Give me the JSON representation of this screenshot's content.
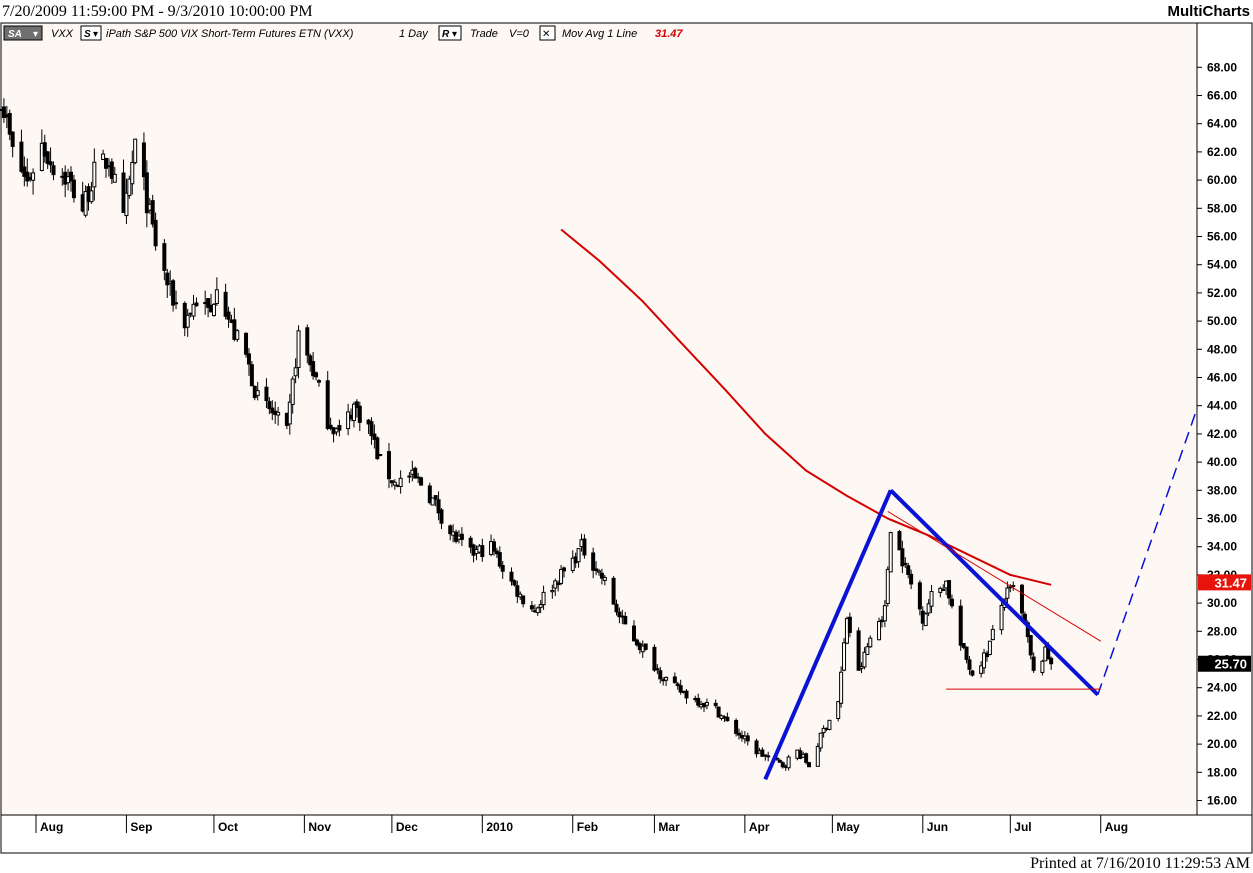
{
  "header": {
    "date_range": "7/20/2009 11:59:00 PM - 9/3/2010 10:00:00 PM",
    "brand": "MultiCharts"
  },
  "legend": {
    "sa_label": "SA",
    "symbol": "VXX",
    "s_label": "S",
    "description": "iPath S&P 500 VIX Short-Term Futures ETN (VXX)",
    "interval": "1 Day",
    "r_label": "R",
    "trade": "Trade",
    "volume": "V=0",
    "close_symbol": "✕",
    "indicator": "Mov Avg 1 Line",
    "indicator_value": "31.47"
  },
  "footer": {
    "printed": "Printed at 7/16/2010 11:29:53 AM"
  },
  "colors": {
    "background": "#fdf8f4",
    "candle": "#000000",
    "moving_average": "#d40000",
    "trendline_blue": "#0a12d6",
    "trendline_red": "#d40000",
    "ma_badge": "#e8130b",
    "price_badge": "#000000"
  },
  "chart_data": {
    "type": "candlestick",
    "title": "",
    "xlabel": "",
    "ylabel": "",
    "y_ticks": [
      "16.00",
      "18.00",
      "20.00",
      "22.00",
      "24.00",
      "26.00",
      "28.00",
      "30.00",
      "32.00",
      "34.00",
      "36.00",
      "38.00",
      "40.00",
      "42.00",
      "44.00",
      "46.00",
      "48.00",
      "50.00",
      "52.00",
      "54.00",
      "56.00",
      "58.00",
      "60.00",
      "62.00",
      "64.00",
      "66.00",
      "68.00"
    ],
    "ylim": [
      15,
      70
    ],
    "x_range": [
      "2009-07-20",
      "2010-09-03"
    ],
    "month_ticks": [
      {
        "date": "2009-08-01",
        "label": "Aug"
      },
      {
        "date": "2009-09-01",
        "label": "Sep"
      },
      {
        "date": "2009-10-01",
        "label": "Oct"
      },
      {
        "date": "2009-11-01",
        "label": "Nov"
      },
      {
        "date": "2009-12-01",
        "label": "Dec"
      },
      {
        "date": "2010-01-01",
        "label": "2010"
      },
      {
        "date": "2010-02-01",
        "label": "Feb"
      },
      {
        "date": "2010-03-01",
        "label": "Mar"
      },
      {
        "date": "2010-04-01",
        "label": "Apr"
      },
      {
        "date": "2010-05-01",
        "label": "May"
      },
      {
        "date": "2010-06-01",
        "label": "Jun"
      },
      {
        "date": "2010-07-01",
        "label": "Jul"
      },
      {
        "date": "2010-08-01",
        "label": "Aug"
      }
    ],
    "last_price": {
      "value": 25.7,
      "label": "25.70"
    },
    "ma_value": {
      "value": 31.47,
      "label": "31.47"
    },
    "close_path": [
      [
        "2009-07-20",
        66.0
      ],
      [
        "2009-07-24",
        62.0
      ],
      [
        "2009-07-29",
        59.8
      ],
      [
        "2009-08-03",
        62.5
      ],
      [
        "2009-08-07",
        61.0
      ],
      [
        "2009-08-12",
        60.0
      ],
      [
        "2009-08-17",
        58.0
      ],
      [
        "2009-08-21",
        60.5
      ],
      [
        "2009-08-26",
        61.5
      ],
      [
        "2009-08-31",
        57.0
      ],
      [
        "2009-09-04",
        62.5
      ],
      [
        "2009-09-08",
        58.5
      ],
      [
        "2009-09-11",
        55.5
      ],
      [
        "2009-09-16",
        52.0
      ],
      [
        "2009-09-21",
        50.0
      ],
      [
        "2009-09-25",
        51.5
      ],
      [
        "2009-09-30",
        50.5
      ],
      [
        "2009-10-02",
        53.0
      ],
      [
        "2009-10-07",
        49.5
      ],
      [
        "2009-10-12",
        47.5
      ],
      [
        "2009-10-16",
        44.5
      ],
      [
        "2009-10-21",
        43.5
      ],
      [
        "2009-10-26",
        42.0
      ],
      [
        "2009-10-30",
        49.0
      ],
      [
        "2009-11-04",
        46.5
      ],
      [
        "2009-11-09",
        43.0
      ],
      [
        "2009-11-13",
        42.0
      ],
      [
        "2009-11-18",
        44.0
      ],
      [
        "2009-11-23",
        42.5
      ],
      [
        "2009-11-27",
        40.0
      ],
      [
        "2009-12-02",
        38.5
      ],
      [
        "2009-12-07",
        39.0
      ],
      [
        "2009-12-11",
        38.5
      ],
      [
        "2009-12-16",
        37.0
      ],
      [
        "2009-12-21",
        35.0
      ],
      [
        "2009-12-28",
        33.5
      ],
      [
        "2010-01-04",
        34.0
      ],
      [
        "2010-01-08",
        32.5
      ],
      [
        "2010-01-14",
        30.5
      ],
      [
        "2010-01-19",
        29.5
      ],
      [
        "2010-01-22",
        30.5
      ],
      [
        "2010-01-28",
        32.0
      ],
      [
        "2010-02-01",
        33.0
      ],
      [
        "2010-02-04",
        34.0
      ],
      [
        "2010-02-09",
        32.5
      ],
      [
        "2010-02-12",
        31.5
      ],
      [
        "2010-02-17",
        29.0
      ],
      [
        "2010-02-22",
        27.5
      ],
      [
        "2010-02-26",
        26.5
      ],
      [
        "2010-03-03",
        25.0
      ],
      [
        "2010-03-08",
        24.0
      ],
      [
        "2010-03-12",
        23.5
      ],
      [
        "2010-03-17",
        23.0
      ],
      [
        "2010-03-22",
        22.5
      ],
      [
        "2010-03-26",
        21.5
      ],
      [
        "2010-03-31",
        20.5
      ],
      [
        "2010-04-05",
        19.5
      ],
      [
        "2010-04-09",
        19.0
      ],
      [
        "2010-04-14",
        18.5
      ],
      [
        "2010-04-19",
        19.5
      ],
      [
        "2010-04-23",
        18.5
      ],
      [
        "2010-04-28",
        21.0
      ],
      [
        "2010-05-03",
        23.0
      ],
      [
        "2010-05-06",
        29.0
      ],
      [
        "2010-05-10",
        25.0
      ],
      [
        "2010-05-14",
        27.5
      ],
      [
        "2010-05-19",
        29.5
      ],
      [
        "2010-05-21",
        35.5
      ],
      [
        "2010-05-26",
        32.5
      ],
      [
        "2010-06-01",
        29.0
      ],
      [
        "2010-06-04",
        30.5
      ],
      [
        "2010-06-09",
        31.5
      ],
      [
        "2010-06-14",
        27.0
      ],
      [
        "2010-06-18",
        25.0
      ],
      [
        "2010-06-23",
        26.5
      ],
      [
        "2010-06-29",
        30.5
      ],
      [
        "2010-07-02",
        31.0
      ],
      [
        "2010-07-06",
        28.5
      ],
      [
        "2010-07-09",
        25.0
      ],
      [
        "2010-07-13",
        26.5
      ],
      [
        "2010-07-15",
        25.7
      ]
    ],
    "moving_average": [
      [
        "2010-01-28",
        56.5
      ],
      [
        "2010-02-10",
        54.3
      ],
      [
        "2010-02-25",
        51.4
      ],
      [
        "2010-03-10",
        48.5
      ],
      [
        "2010-03-25",
        45.2
      ],
      [
        "2010-04-08",
        42.0
      ],
      [
        "2010-04-22",
        39.4
      ],
      [
        "2010-05-06",
        37.6
      ],
      [
        "2010-05-20",
        36.0
      ],
      [
        "2010-06-03",
        34.8
      ],
      [
        "2010-06-17",
        33.4
      ],
      [
        "2010-07-01",
        32.0
      ],
      [
        "2010-07-15",
        31.3
      ]
    ],
    "annotations": [
      {
        "type": "trendline",
        "color": "blue",
        "style": "thick",
        "from": [
          "2010-04-08",
          17.5
        ],
        "to": [
          "2010-05-21",
          38.0
        ]
      },
      {
        "type": "trendline",
        "color": "blue",
        "style": "thick",
        "from": [
          "2010-05-21",
          38.0
        ],
        "to": [
          "2010-07-31",
          23.5
        ]
      },
      {
        "type": "trendline",
        "color": "blue",
        "style": "dashed",
        "from": [
          "2010-07-31",
          23.5
        ],
        "to": [
          "2010-09-03",
          43.8
        ]
      },
      {
        "type": "trendline",
        "color": "red",
        "style": "thin",
        "from": [
          "2010-05-20",
          36.5
        ],
        "to": [
          "2010-08-01",
          27.3
        ]
      },
      {
        "type": "hline",
        "color": "red",
        "style": "thin",
        "from": [
          "2010-06-09",
          23.9
        ],
        "to": [
          "2010-08-01",
          23.9
        ]
      }
    ]
  }
}
